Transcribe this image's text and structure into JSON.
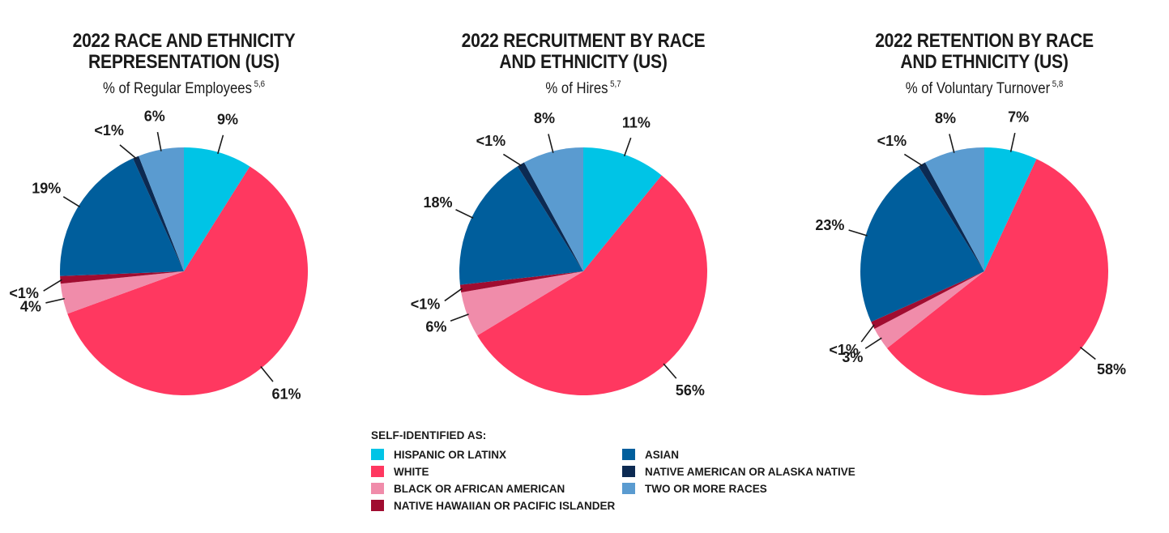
{
  "colors": {
    "hispanic": "#00c4e6",
    "white": "#ff3860",
    "black": "#f08caa",
    "nhpi": "#a00c30",
    "asian": "#005e9c",
    "native_american": "#0c2a52",
    "two_or_more": "#5a9bd0"
  },
  "legend": {
    "heading": "SELF-IDENTIFIED AS:",
    "items": [
      {
        "key": "hispanic",
        "label": "HISPANIC OR LATINX"
      },
      {
        "key": "white",
        "label": "WHITE"
      },
      {
        "key": "black",
        "label": "BLACK OR AFRICAN AMERICAN"
      },
      {
        "key": "nhpi",
        "label": "NATIVE HAWAIIAN OR PACIFIC ISLANDER"
      },
      {
        "key": "asian",
        "label": "ASIAN"
      },
      {
        "key": "native_american",
        "label": "NATIVE AMERICAN OR ALASKA NATIVE"
      },
      {
        "key": "two_or_more",
        "label": "TWO OR MORE RACES"
      }
    ]
  },
  "chart_data": [
    {
      "type": "pie",
      "title_line1": "2022 RACE AND ETHNICITY",
      "title_line2": "REPRESENTATION (US)",
      "subtitle": "% of Regular Employees",
      "footnote": "5,6",
      "slices": [
        {
          "key": "hispanic",
          "value": 9,
          "label": "9%"
        },
        {
          "key": "white",
          "value": 61,
          "label": "61%"
        },
        {
          "key": "black",
          "value": 4,
          "label": "4%"
        },
        {
          "key": "nhpi",
          "value": 1,
          "label": "<1%"
        },
        {
          "key": "asian",
          "value": 19,
          "label": "19%"
        },
        {
          "key": "native_american",
          "value": 0.8,
          "label": "<1%"
        },
        {
          "key": "two_or_more",
          "value": 6,
          "label": "6%"
        }
      ]
    },
    {
      "type": "pie",
      "title_line1": "2022 RECRUITMENT BY RACE",
      "title_line2": "AND ETHNICITY (US)",
      "subtitle": "% of Hires",
      "footnote": "5,7",
      "slices": [
        {
          "key": "hispanic",
          "value": 11,
          "label": "11%"
        },
        {
          "key": "white",
          "value": 56,
          "label": "56%"
        },
        {
          "key": "black",
          "value": 6,
          "label": "6%"
        },
        {
          "key": "nhpi",
          "value": 1,
          "label": "<1%"
        },
        {
          "key": "asian",
          "value": 18,
          "label": "18%"
        },
        {
          "key": "native_american",
          "value": 1,
          "label": "<1%"
        },
        {
          "key": "two_or_more",
          "value": 8,
          "label": "8%"
        }
      ]
    },
    {
      "type": "pie",
      "title_line1": "2022 RETENTION BY RACE",
      "title_line2": "AND ETHNICITY (US)",
      "subtitle": "% of Voluntary Turnover",
      "footnote": "5,8",
      "slices": [
        {
          "key": "hispanic",
          "value": 7,
          "label": "7%"
        },
        {
          "key": "white",
          "value": 58,
          "label": "58%"
        },
        {
          "key": "black",
          "value": 3,
          "label": "3%"
        },
        {
          "key": "nhpi",
          "value": 1,
          "label": "<1%"
        },
        {
          "key": "asian",
          "value": 23,
          "label": "23%"
        },
        {
          "key": "native_american",
          "value": 1,
          "label": "<1%"
        },
        {
          "key": "two_or_more",
          "value": 8,
          "label": "8%"
        }
      ]
    }
  ]
}
